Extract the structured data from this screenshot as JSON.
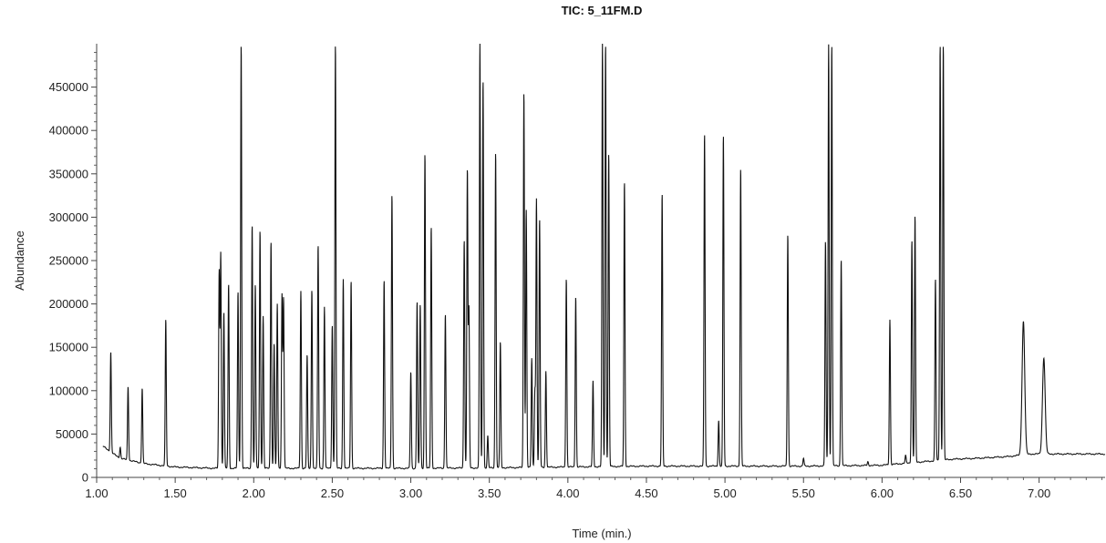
{
  "chart_data": {
    "type": "line",
    "title": "TIC: 5_11FM.D",
    "xlabel": "Time (min.)",
    "ylabel": "Abundance",
    "xlim": [
      1.0,
      7.42
    ],
    "ylim": [
      0,
      500000
    ],
    "x_ticks": [
      "1.00",
      "1.50",
      "2.00",
      "2.50",
      "3.00",
      "3.50",
      "4.00",
      "4.50",
      "5.00",
      "5.50",
      "6.00",
      "6.50",
      "7.00"
    ],
    "y_ticks": [
      "0",
      "50000",
      "100000",
      "150000",
      "200000",
      "250000",
      "300000",
      "350000",
      "400000",
      "450000"
    ],
    "grid": false,
    "legend": "none",
    "line_color": "#111111",
    "baseline": [
      [
        1.04,
        36000
      ],
      [
        1.1,
        28000
      ],
      [
        1.15,
        22000
      ],
      [
        1.3,
        16000
      ],
      [
        1.5,
        12000
      ],
      [
        1.75,
        10500
      ],
      [
        2.5,
        10500
      ],
      [
        3.0,
        10500
      ],
      [
        3.5,
        11000
      ],
      [
        4.0,
        12000
      ],
      [
        4.5,
        13000
      ],
      [
        5.0,
        13000
      ],
      [
        5.5,
        13000
      ],
      [
        6.0,
        14000
      ],
      [
        6.45,
        21000
      ],
      [
        6.6,
        22000
      ],
      [
        6.8,
        24000
      ],
      [
        6.95,
        27000
      ],
      [
        7.1,
        27000
      ],
      [
        7.42,
        27000
      ]
    ],
    "peaks": [
      {
        "t": 1.09,
        "h": 145000
      },
      {
        "t": 1.15,
        "h": 35000
      },
      {
        "t": 1.2,
        "h": 105000
      },
      {
        "t": 1.29,
        "h": 103000
      },
      {
        "t": 1.44,
        "h": 182000
      },
      {
        "t": 1.78,
        "h": 237000
      },
      {
        "t": 1.79,
        "h": 258000
      },
      {
        "t": 1.81,
        "h": 191000
      },
      {
        "t": 1.84,
        "h": 223000
      },
      {
        "t": 1.9,
        "h": 214000
      },
      {
        "t": 1.92,
        "h": 500000
      },
      {
        "t": 1.99,
        "h": 292000
      },
      {
        "t": 2.01,
        "h": 223000
      },
      {
        "t": 2.04,
        "h": 285000
      },
      {
        "t": 2.06,
        "h": 186000
      },
      {
        "t": 2.11,
        "h": 273000
      },
      {
        "t": 2.13,
        "h": 155000
      },
      {
        "t": 2.15,
        "h": 200000
      },
      {
        "t": 2.18,
        "h": 210000
      },
      {
        "t": 2.19,
        "h": 206000
      },
      {
        "t": 2.3,
        "h": 215000
      },
      {
        "t": 2.34,
        "h": 141000
      },
      {
        "t": 2.37,
        "h": 217000
      },
      {
        "t": 2.41,
        "h": 268000
      },
      {
        "t": 2.45,
        "h": 197000
      },
      {
        "t": 2.5,
        "h": 176000
      },
      {
        "t": 2.52,
        "h": 500000
      },
      {
        "t": 2.57,
        "h": 229000
      },
      {
        "t": 2.62,
        "h": 227000
      },
      {
        "t": 2.83,
        "h": 228000
      },
      {
        "t": 2.88,
        "h": 327000
      },
      {
        "t": 3.0,
        "h": 122000
      },
      {
        "t": 3.04,
        "h": 203000
      },
      {
        "t": 3.06,
        "h": 200000
      },
      {
        "t": 3.09,
        "h": 374000
      },
      {
        "t": 3.13,
        "h": 289000
      },
      {
        "t": 3.22,
        "h": 189000
      },
      {
        "t": 3.34,
        "h": 275000
      },
      {
        "t": 3.36,
        "h": 355000
      },
      {
        "t": 3.37,
        "h": 194000
      },
      {
        "t": 3.44,
        "h": 500000
      },
      {
        "t": 3.46,
        "h": 459000
      },
      {
        "t": 3.49,
        "h": 48000
      },
      {
        "t": 3.54,
        "h": 376000
      },
      {
        "t": 3.57,
        "h": 156000
      },
      {
        "t": 3.72,
        "h": 445000
      },
      {
        "t": 3.735,
        "h": 309000
      },
      {
        "t": 3.77,
        "h": 137000
      },
      {
        "t": 3.79,
        "h": 99000
      },
      {
        "t": 3.8,
        "h": 321000
      },
      {
        "t": 3.82,
        "h": 298000
      },
      {
        "t": 3.86,
        "h": 123000
      },
      {
        "t": 3.99,
        "h": 230000
      },
      {
        "t": 4.05,
        "h": 209000
      },
      {
        "t": 4.16,
        "h": 111000
      },
      {
        "t": 4.22,
        "h": 500000
      },
      {
        "t": 4.24,
        "h": 500000
      },
      {
        "t": 4.26,
        "h": 374000
      },
      {
        "t": 4.36,
        "h": 341000
      },
      {
        "t": 4.6,
        "h": 327000
      },
      {
        "t": 4.87,
        "h": 397000
      },
      {
        "t": 4.96,
        "h": 66000
      },
      {
        "t": 4.99,
        "h": 395000
      },
      {
        "t": 5.1,
        "h": 357000
      },
      {
        "t": 5.4,
        "h": 281000
      },
      {
        "t": 5.5,
        "h": 22000
      },
      {
        "t": 5.64,
        "h": 273000
      },
      {
        "t": 5.66,
        "h": 500000
      },
      {
        "t": 5.68,
        "h": 500000
      },
      {
        "t": 5.74,
        "h": 252000
      },
      {
        "t": 5.91,
        "h": 18000
      },
      {
        "t": 6.05,
        "h": 182000
      },
      {
        "t": 6.15,
        "h": 25000
      },
      {
        "t": 6.19,
        "h": 274000
      },
      {
        "t": 6.21,
        "h": 302000
      },
      {
        "t": 6.34,
        "h": 229000
      },
      {
        "t": 6.37,
        "h": 500000
      },
      {
        "t": 6.39,
        "h": 500000
      },
      {
        "t": 6.9,
        "h": 180000
      },
      {
        "t": 7.03,
        "h": 138000
      }
    ]
  }
}
